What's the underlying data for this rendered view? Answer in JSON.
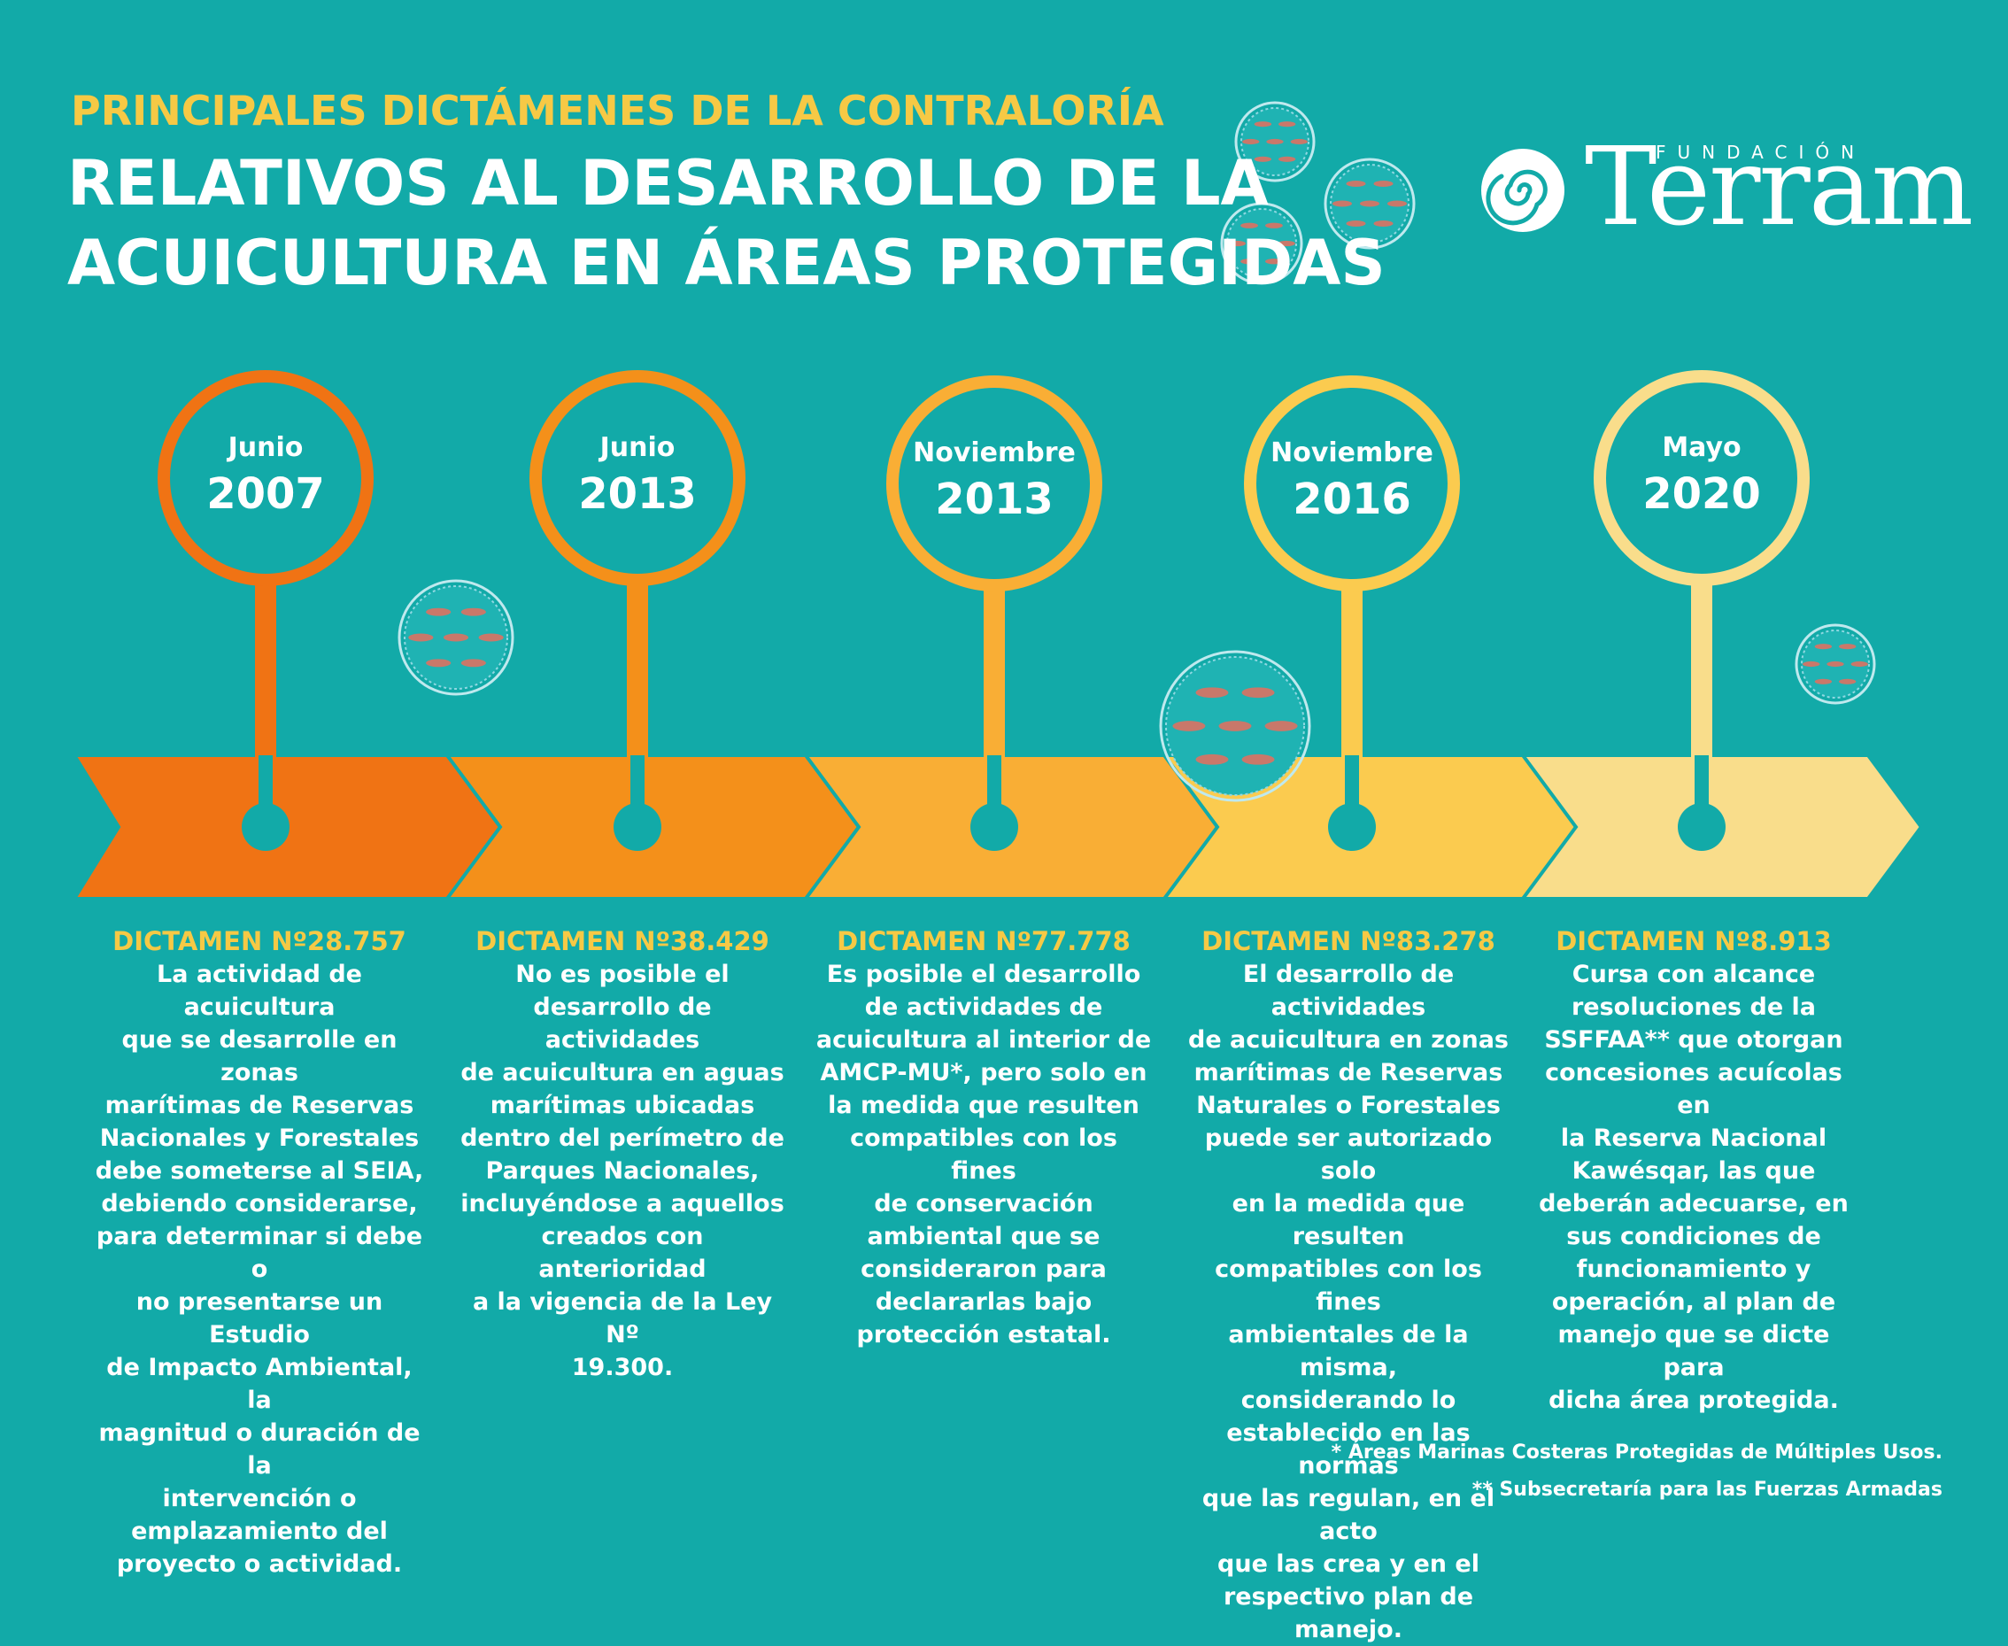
{
  "header": {
    "subtitle": "PRINCIPALES DICTÁMENES DE LA CONTRALORÍA",
    "title_line1": "RELATIVOS AL DESARROLLO DE LA",
    "title_line2": "ACUICULTURA EN ÁREAS PROTEGIDAS"
  },
  "logo": {
    "small": "FUNDACIÓN",
    "name": "Terram"
  },
  "colors": {
    "background": "#12aaa8",
    "accent_yellow": "#f6c945",
    "stage1": "#f07314",
    "stage2": "#f4901a",
    "stage3": "#f9ae35",
    "stage4": "#fbcb4f",
    "stage5": "#f9dd8b"
  },
  "milestones": [
    {
      "month": "Junio",
      "year": "2007",
      "dictamen": "DICTAMEN Nº28.757",
      "lines": [
        "La actividad de acuicultura",
        "que se desarrolle en zonas",
        "marítimas de Reservas",
        "Nacionales y Forestales",
        "debe someterse al SEIA,",
        "debiendo considerarse,",
        "para determinar si debe o",
        "no presentarse un Estudio",
        "de Impacto Ambiental, la",
        "magnitud o duración de la",
        "intervención o",
        "emplazamiento del",
        "proyecto o actividad."
      ]
    },
    {
      "month": "Junio",
      "year": "2013",
      "dictamen": "DICTAMEN Nº38.429",
      "lines": [
        "No es posible el",
        "desarrollo de actividades",
        "de acuicultura en aguas",
        "marítimas ubicadas",
        "dentro del perímetro de",
        "Parques Nacionales,",
        "incluyéndose a aquellos",
        "creados con anterioridad",
        "a la vigencia de la Ley Nº",
        "19.300."
      ]
    },
    {
      "month": "Noviembre",
      "year": "2013",
      "dictamen": "DICTAMEN Nº77.778",
      "lines": [
        "Es posible el desarrollo",
        "de actividades de",
        "acuicultura al interior de",
        "AMCP-MU*, pero solo en",
        "la medida que resulten",
        "compatibles con los fines",
        "de conservación",
        "ambiental que se",
        "consideraron para",
        "declararlas bajo",
        "protección estatal."
      ]
    },
    {
      "month": "Noviembre",
      "year": "2016",
      "dictamen": "DICTAMEN Nº83.278",
      "lines": [
        "El desarrollo de actividades",
        "de acuicultura en zonas",
        "marítimas de Reservas",
        "Naturales o Forestales",
        "puede ser autorizado solo",
        "en la medida que resulten",
        "compatibles con los fines",
        "ambientales de la misma,",
        "considerando lo",
        "establecido en las normas",
        "que las regulan, en el acto",
        "que las crea y en el",
        "respectivo plan de manejo."
      ]
    },
    {
      "month": "Mayo",
      "year": "2020",
      "dictamen": "DICTAMEN Nº8.913",
      "lines": [
        "Cursa con alcance",
        "resoluciones de la",
        "SSFFAA** que otorgan",
        "concesiones acuícolas en",
        "la Reserva Nacional",
        "Kawésqar, las que",
        "deberán adecuarse, en",
        "sus condiciones de",
        "funcionamiento y",
        "operación, al plan de",
        "manejo que se dicte para",
        "dicha área protegida."
      ]
    }
  ],
  "footnotes": {
    "note1": "* Áreas Marinas Costeras Protegidas de Múltiples Usos.",
    "note2": "** Subsecretaría para las Fuerzas Armadas"
  },
  "icons": [
    "fish-farm-cage-icon",
    "spiral-logo-icon"
  ]
}
